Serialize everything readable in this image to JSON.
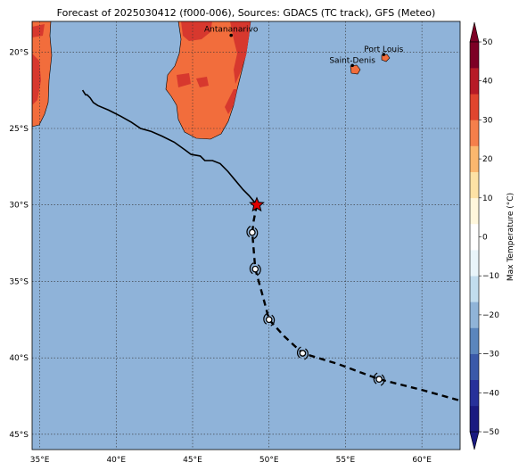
{
  "map": {
    "title": "Forecast of 2025030412 (f000-006), Sources: GDACS (TC track), GFS (Meteo)",
    "lon_range": [
      34.5,
      62.5
    ],
    "lat_range": [
      -46.0,
      -18.0
    ],
    "lon_ticks": [
      35,
      40,
      45,
      50,
      55,
      60
    ],
    "lon_tick_labels": [
      "35°E",
      "40°E",
      "45°E",
      "50°E",
      "55°E",
      "60°E"
    ],
    "lat_ticks": [
      -20,
      -25,
      -30,
      -35,
      -40,
      -45
    ],
    "lat_tick_labels": [
      "20°S",
      "25°S",
      "30°S",
      "35°S",
      "40°S",
      "45°S"
    ],
    "ocean_color": "#8fb3d9",
    "gridlines": true
  },
  "cities": [
    {
      "name": "Antananarivo",
      "lon": 47.52,
      "lat": -18.91
    },
    {
      "name": "Port Louis",
      "lon": 57.5,
      "lat": -20.16
    },
    {
      "name": "Saint-Denis",
      "lon": 55.45,
      "lat": -20.88
    }
  ],
  "track": {
    "past": [
      [
        37.8,
        -22.5
      ],
      [
        38.0,
        -22.8
      ],
      [
        38.1,
        -22.8
      ],
      [
        38.3,
        -23.0
      ],
      [
        38.5,
        -23.3
      ],
      [
        38.8,
        -23.5
      ],
      [
        39.5,
        -23.8
      ],
      [
        40.3,
        -24.2
      ],
      [
        41.0,
        -24.6
      ],
      [
        41.6,
        -25.0
      ],
      [
        42.3,
        -25.2
      ],
      [
        43.0,
        -25.5
      ],
      [
        43.8,
        -25.9
      ],
      [
        44.5,
        -26.4
      ],
      [
        44.9,
        -26.7
      ],
      [
        45.5,
        -26.8
      ],
      [
        45.8,
        -27.1
      ],
      [
        46.3,
        -27.1
      ],
      [
        46.8,
        -27.3
      ],
      [
        47.3,
        -27.8
      ],
      [
        47.8,
        -28.4
      ],
      [
        48.3,
        -29.0
      ],
      [
        48.7,
        -29.4
      ],
      [
        49.2,
        -30.0
      ]
    ],
    "forecast": [
      [
        49.2,
        -30.0
      ],
      [
        49.0,
        -31.0
      ],
      [
        48.9,
        -31.8
      ],
      [
        49.0,
        -33.0
      ],
      [
        49.1,
        -34.2
      ],
      [
        49.6,
        -36.0
      ],
      [
        50.0,
        -37.5
      ],
      [
        51.0,
        -38.6
      ],
      [
        52.2,
        -39.7
      ],
      [
        54.5,
        -40.4
      ],
      [
        57.2,
        -41.4
      ],
      [
        60.0,
        -42.1
      ],
      [
        62.5,
        -42.8
      ]
    ],
    "storm_symbols": [
      [
        48.9,
        -31.8
      ],
      [
        49.1,
        -34.2
      ],
      [
        50.0,
        -37.5
      ],
      [
        52.2,
        -39.7
      ],
      [
        57.2,
        -41.4
      ]
    ],
    "current_position": {
      "lon": 49.2,
      "lat": -30.0,
      "marker": "red-star"
    }
  },
  "colorbar": {
    "label": "Max Temperature (°C)",
    "min": -50,
    "max": 50,
    "ticks": [
      50,
      40,
      30,
      20,
      10,
      0,
      -10,
      -20,
      -30,
      -40,
      -50
    ],
    "tick_labels": [
      "50",
      "40",
      "30",
      "20",
      "10",
      "0",
      "−10",
      "−20",
      "−30",
      "−40",
      "−50"
    ],
    "colors": [
      "#1a1a80",
      "#27319a",
      "#3a59a9",
      "#5b86bd",
      "#90b4d8",
      "#c2ddee",
      "#e9f5fa",
      "#ffffff",
      "#fff7dc",
      "#fde2a5",
      "#fbb76e",
      "#f57f4b",
      "#e0452e",
      "#b71b26",
      "#7d0025"
    ]
  }
}
